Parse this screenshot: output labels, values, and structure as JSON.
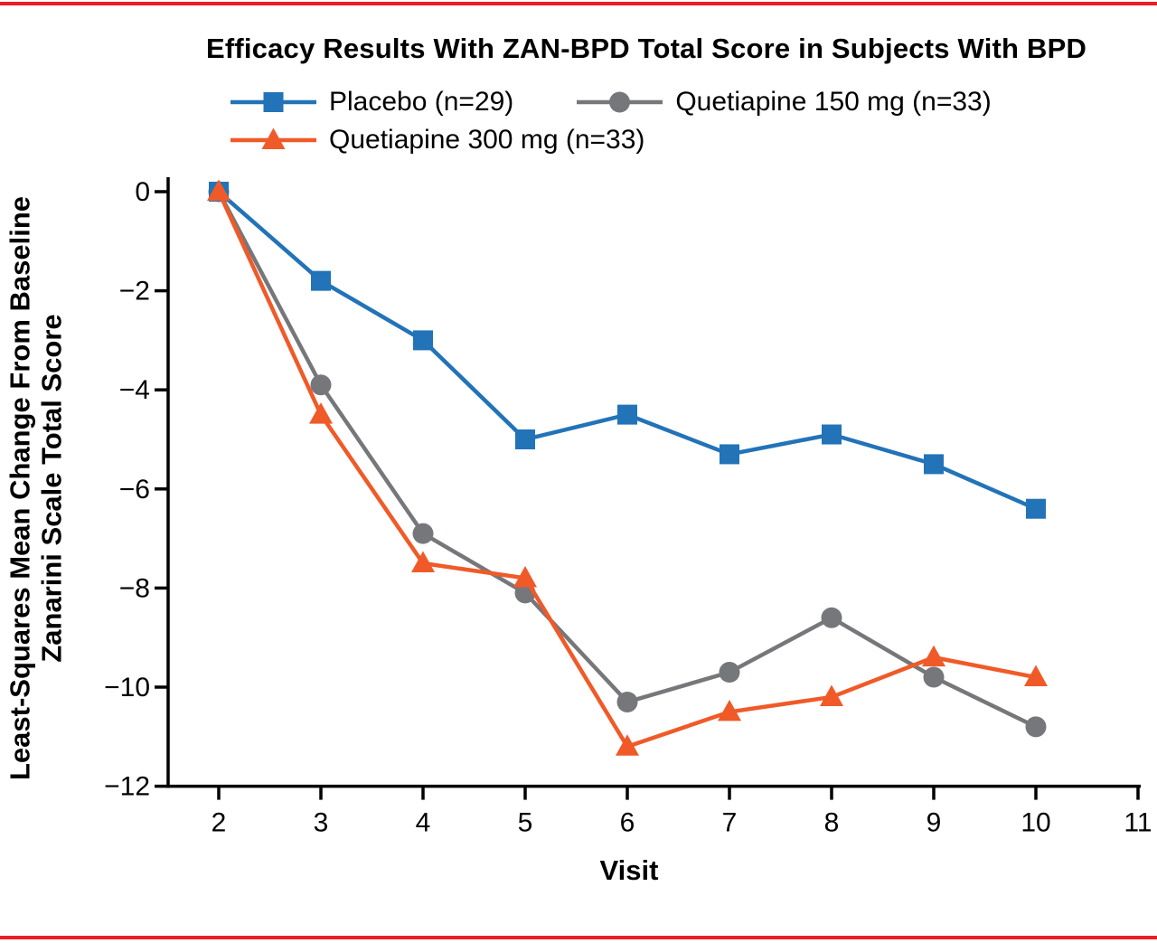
{
  "page": {
    "background_color": "#ffffff",
    "border_rule_color": "#ed1c24"
  },
  "chart": {
    "title": "Efficacy Results With ZAN-BPD Total Score in Subjects With BPD",
    "xlabel": "Visit",
    "ylabel_line1": "Least-Squares Mean Change From Baseline",
    "ylabel_line2": "Zanarini Scale Total Score"
  },
  "chart_data": {
    "type": "line",
    "title": "Efficacy Results With ZAN-BPD Total Score in Subjects With BPD",
    "xlabel": "Visit",
    "ylabel": "Least-Squares Mean Change From Baseline Zanarini Scale Total Score",
    "x": [
      2,
      3,
      4,
      5,
      6,
      7,
      8,
      9,
      10
    ],
    "xlim": [
      2,
      11
    ],
    "ylim": [
      -12,
      0
    ],
    "x_ticks": [
      2,
      3,
      4,
      5,
      6,
      7,
      8,
      9,
      10,
      11
    ],
    "x_tick_labels": [
      "2",
      "3",
      "4",
      "5",
      "6",
      "7",
      "8",
      "9",
      "10",
      "11"
    ],
    "y_ticks": [
      0,
      -2,
      -4,
      -6,
      -8,
      -10,
      -12
    ],
    "y_tick_labels": [
      "0",
      "−2",
      "−4",
      "−6",
      "−8",
      "−10",
      "−12"
    ],
    "grid": false,
    "legend_position": "top",
    "axis_color": "#000000",
    "series": [
      {
        "name": "Placebo (n=29)",
        "marker": "square",
        "color": "#2273b8",
        "values": [
          0,
          -1.8,
          -3.0,
          -5.0,
          -4.5,
          -5.3,
          -4.9,
          -5.5,
          -6.4
        ]
      },
      {
        "name": "Quetiapine 150 mg (n=33)",
        "marker": "circle",
        "color": "#76777a",
        "values": [
          0,
          -3.9,
          -6.9,
          -8.1,
          -10.3,
          -9.7,
          -8.6,
          -9.8,
          -10.8
        ]
      },
      {
        "name": "Quetiapine 300 mg (n=33)",
        "marker": "triangle",
        "color": "#f05a28",
        "values": [
          0,
          -4.5,
          -7.5,
          -7.8,
          -11.2,
          -10.5,
          -10.2,
          -9.4,
          -9.8
        ]
      }
    ]
  }
}
